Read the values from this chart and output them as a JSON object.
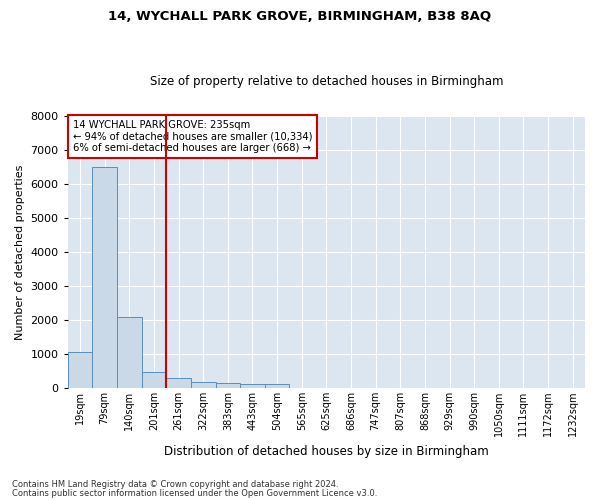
{
  "title": "14, WYCHALL PARK GROVE, BIRMINGHAM, B38 8AQ",
  "subtitle": "Size of property relative to detached houses in Birmingham",
  "xlabel": "Distribution of detached houses by size in Birmingham",
  "ylabel": "Number of detached properties",
  "footnote1": "Contains HM Land Registry data © Crown copyright and database right 2024.",
  "footnote2": "Contains public sector information licensed under the Open Government Licence v3.0.",
  "annotation_line1": "14 WYCHALL PARK GROVE: 235sqm",
  "annotation_line2": "← 94% of detached houses are smaller (10,334)",
  "annotation_line3": "6% of semi-detached houses are larger (668) →",
  "bar_color": "#c9d9e8",
  "bar_edge_color": "#5b8db8",
  "vline_color": "#cc0000",
  "vline_x_index": 3.5,
  "categories": [
    "19sqm",
    "79sqm",
    "140sqm",
    "201sqm",
    "261sqm",
    "322sqm",
    "383sqm",
    "443sqm",
    "504sqm",
    "565sqm",
    "625sqm",
    "686sqm",
    "747sqm",
    "807sqm",
    "868sqm",
    "929sqm",
    "990sqm",
    "1050sqm",
    "1111sqm",
    "1172sqm",
    "1232sqm"
  ],
  "values": [
    1050,
    6500,
    2100,
    480,
    300,
    180,
    140,
    110,
    100,
    0,
    0,
    0,
    0,
    0,
    0,
    0,
    0,
    0,
    0,
    0,
    0
  ],
  "ylim": [
    0,
    8000
  ],
  "yticks": [
    0,
    1000,
    2000,
    3000,
    4000,
    5000,
    6000,
    7000,
    8000
  ],
  "plot_bg_color": "#dce6f1",
  "grid_color": "#ffffff",
  "ann_box_facecolor": "#ffffff",
  "ann_box_edgecolor": "#cc0000"
}
